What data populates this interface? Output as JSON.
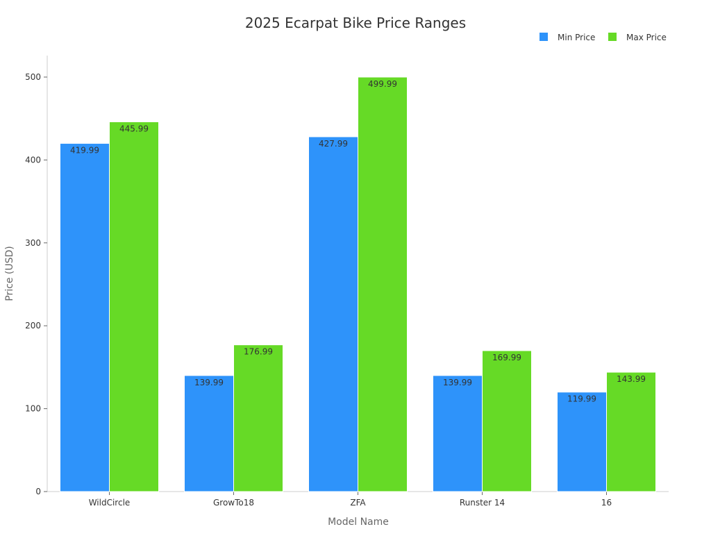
{
  "chart_data": {
    "type": "bar",
    "title": "2025 Ecarpat Bike Price Ranges",
    "xlabel": "Model Name",
    "ylabel": "Price (USD)",
    "categories": [
      "WildCircle",
      "GrowTo18",
      "ZFA",
      "Runster 14",
      "16"
    ],
    "series": [
      {
        "name": "Min Price",
        "color": "#2E93FA",
        "values": [
          419.99,
          139.99,
          427.99,
          139.99,
          119.99
        ],
        "labels": [
          "419.99",
          "139.99",
          "427.99",
          "139.99",
          "119.99"
        ]
      },
      {
        "name": "Max Price",
        "color": "#66DA26",
        "values": [
          445.99,
          176.99,
          499.99,
          169.99,
          143.99
        ],
        "labels": [
          "445.99",
          "176.99",
          "499.99",
          "169.99",
          "143.99"
        ]
      }
    ],
    "ylim": [
      0,
      525
    ],
    "yticks": [
      0,
      100,
      200,
      300,
      400,
      500
    ],
    "yticklabels": [
      "0",
      "100",
      "200",
      "300",
      "400",
      "500"
    ],
    "grid": false,
    "legend_position": "top-right"
  }
}
